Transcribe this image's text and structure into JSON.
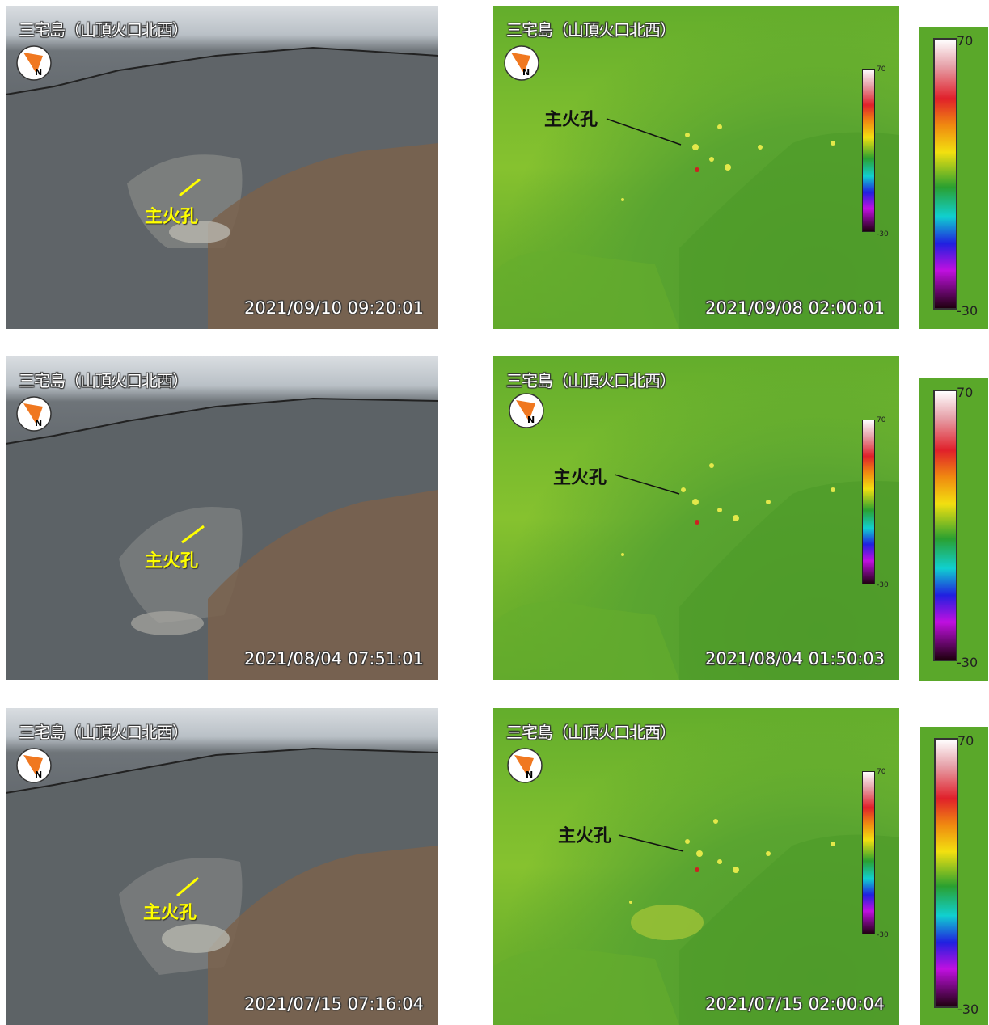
{
  "rows": [
    {
      "visible": {
        "title": "三宅島（山頂火口北西）",
        "timestamp": "2021/09/10 09:20:01",
        "label": "主火孔"
      },
      "thermal": {
        "title": "三宅島（山頂火口北西）",
        "timestamp": "2021/09/08 02:00:01",
        "label": "主火孔",
        "scale_max": "70",
        "scale_min": "-30"
      },
      "colorbar": {
        "max": "70",
        "min": "-30"
      }
    },
    {
      "visible": {
        "title": "三宅島（山頂火口北西）",
        "timestamp": "2021/08/04 07:51:01",
        "label": "主火孔"
      },
      "thermal": {
        "title": "三宅島（山頂火口北西）",
        "timestamp": "2021/08/04 01:50:03",
        "label": "主火孔",
        "scale_max": "70",
        "scale_min": "-30"
      },
      "colorbar": {
        "max": "70",
        "min": "-30"
      }
    },
    {
      "visible": {
        "title": "三宅島（山頂火口北西）",
        "timestamp": "2021/07/15 07:16:04",
        "label": "主火孔"
      },
      "thermal": {
        "title": "三宅島（山頂火口北西）",
        "timestamp": "2021/07/15 02:00:04",
        "label": "主火孔",
        "scale_max": "70",
        "scale_min": "-30"
      },
      "colorbar": {
        "max": "70",
        "min": "-30"
      }
    }
  ],
  "compass_letter": "N",
  "colors": {
    "label_visible": "#ffff00",
    "label_thermal": "#111111",
    "compass": "#f07820"
  }
}
